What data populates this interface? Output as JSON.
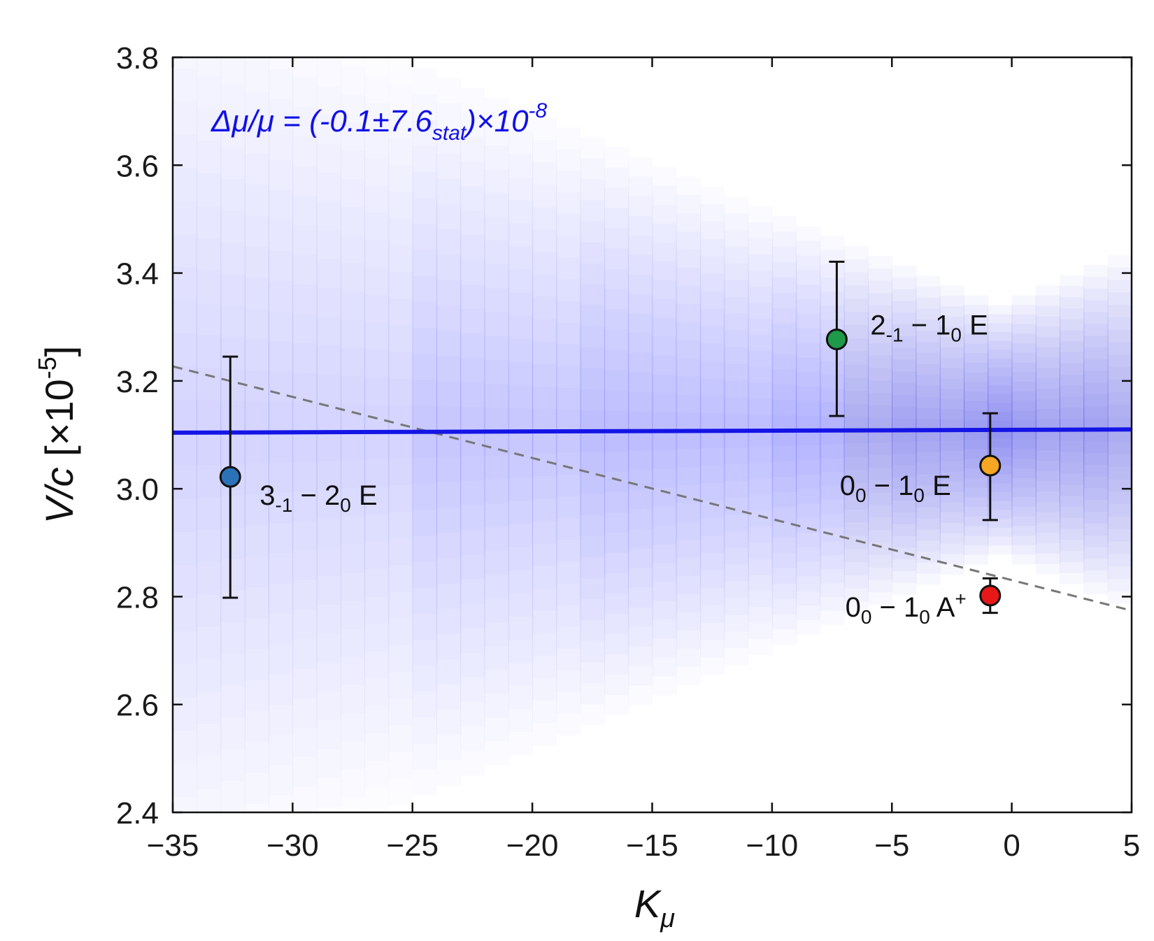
{
  "chart_data": {
    "type": "scatter",
    "title": "",
    "xlabel": {
      "main": "K",
      "sub": "μ"
    },
    "ylabel": {
      "main": "V/c",
      "rest": "[×10",
      "sup": "-5",
      "close": "]"
    },
    "xlim": [
      -35,
      5
    ],
    "ylim": [
      2.4,
      3.8
    ],
    "xticks": [
      -35,
      -30,
      -25,
      -20,
      -15,
      -10,
      -5,
      0,
      5
    ],
    "xtick_labels": [
      "−35",
      "−30",
      "−25",
      "−20",
      "−15",
      "−10",
      "−5",
      "0",
      "5"
    ],
    "yticks": [
      2.4,
      2.6,
      2.8,
      3.0,
      3.2,
      3.4,
      3.6,
      3.8
    ],
    "ytick_labels": [
      "2.4",
      "2.6",
      "2.8",
      "3.0",
      "3.2",
      "3.4",
      "3.6",
      "3.8"
    ],
    "grid": false,
    "annotation": {
      "prefix": "Δμ/μ = (-0.1±7.6",
      "sub": "stat",
      "middle": ")×10",
      "sup": "-8",
      "color": "#1010e8"
    },
    "points": [
      {
        "x": -32.6,
        "y": 3.022,
        "err_low": 2.798,
        "err_high": 3.245,
        "color": "#2b72b8",
        "label": {
          "a": "3",
          "a_sub": "-1",
          "mid": " − 2",
          "b_sub": "0",
          "rest": " E"
        }
      },
      {
        "x": -7.3,
        "y": 3.277,
        "err_low": 3.135,
        "err_high": 3.421,
        "color": "#1f9a4a",
        "label": {
          "a": "2",
          "a_sub": "-1",
          "mid": " − 1",
          "b_sub": "0",
          "rest": " E"
        }
      },
      {
        "x": -0.9,
        "y": 3.043,
        "err_low": 2.942,
        "err_high": 3.14,
        "color": "#f5a623",
        "label": {
          "a": "0",
          "a_sub": "0",
          "mid": " − 1",
          "b_sub": "0",
          "rest": " E"
        }
      },
      {
        "x": -0.9,
        "y": 2.802,
        "err_low": 2.77,
        "err_high": 2.834,
        "color": "#e81818",
        "label": {
          "a": "0",
          "a_sub": "0",
          "mid": " − 1",
          "b_sub": "0",
          "rest": " A",
          "sup": "+"
        }
      }
    ],
    "fit_line": {
      "x": [
        -35,
        5
      ],
      "y": [
        3.104,
        3.11
      ],
      "color": "#1414e6"
    },
    "dashed_line": {
      "x": [
        -35,
        5
      ],
      "y": [
        3.227,
        2.774
      ],
      "color": "#777777"
    },
    "uncertainty_band": {
      "color": "#3a3af0"
    }
  }
}
